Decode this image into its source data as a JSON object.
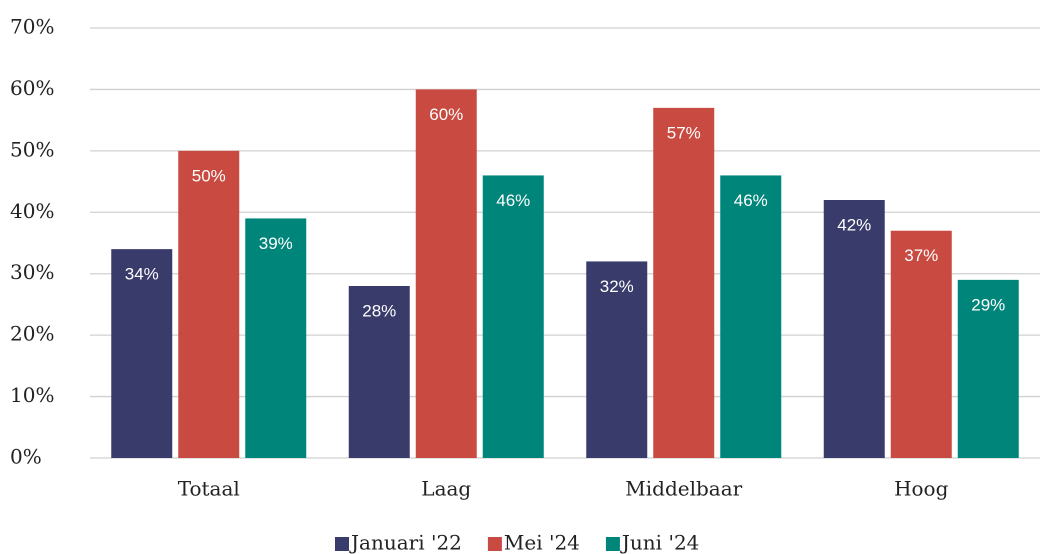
{
  "chart_data": {
    "type": "bar",
    "categories": [
      "Totaal",
      "Laag",
      "Middelbaar",
      "Hoog"
    ],
    "series": [
      {
        "name": "Januari '22",
        "color": "#393b6b",
        "values": [
          34,
          28,
          32,
          42
        ],
        "value_labels": [
          "34%",
          "28%",
          "32%",
          "42%"
        ]
      },
      {
        "name": "Mei '24",
        "color": "#c94a40",
        "values": [
          50,
          60,
          57,
          37
        ],
        "value_labels": [
          "50%",
          "60%",
          "57%",
          "37%"
        ]
      },
      {
        "name": "Juni '24",
        "color": "#00857a",
        "values": [
          39,
          46,
          46,
          29
        ],
        "value_labels": [
          "39%",
          "46%",
          "46%",
          "29%"
        ]
      }
    ],
    "ylim": [
      0,
      70
    ],
    "yticks": [
      {
        "value": 0,
        "label": "0%"
      },
      {
        "value": 10,
        "label": "10%"
      },
      {
        "value": 20,
        "label": "20%"
      },
      {
        "value": 30,
        "label": "30%"
      },
      {
        "value": 40,
        "label": "40%"
      },
      {
        "value": 50,
        "label": "50%"
      },
      {
        "value": 60,
        "label": "60%"
      },
      {
        "value": 70,
        "label": "70%"
      }
    ],
    "grid": true,
    "legend": "bottom"
  }
}
